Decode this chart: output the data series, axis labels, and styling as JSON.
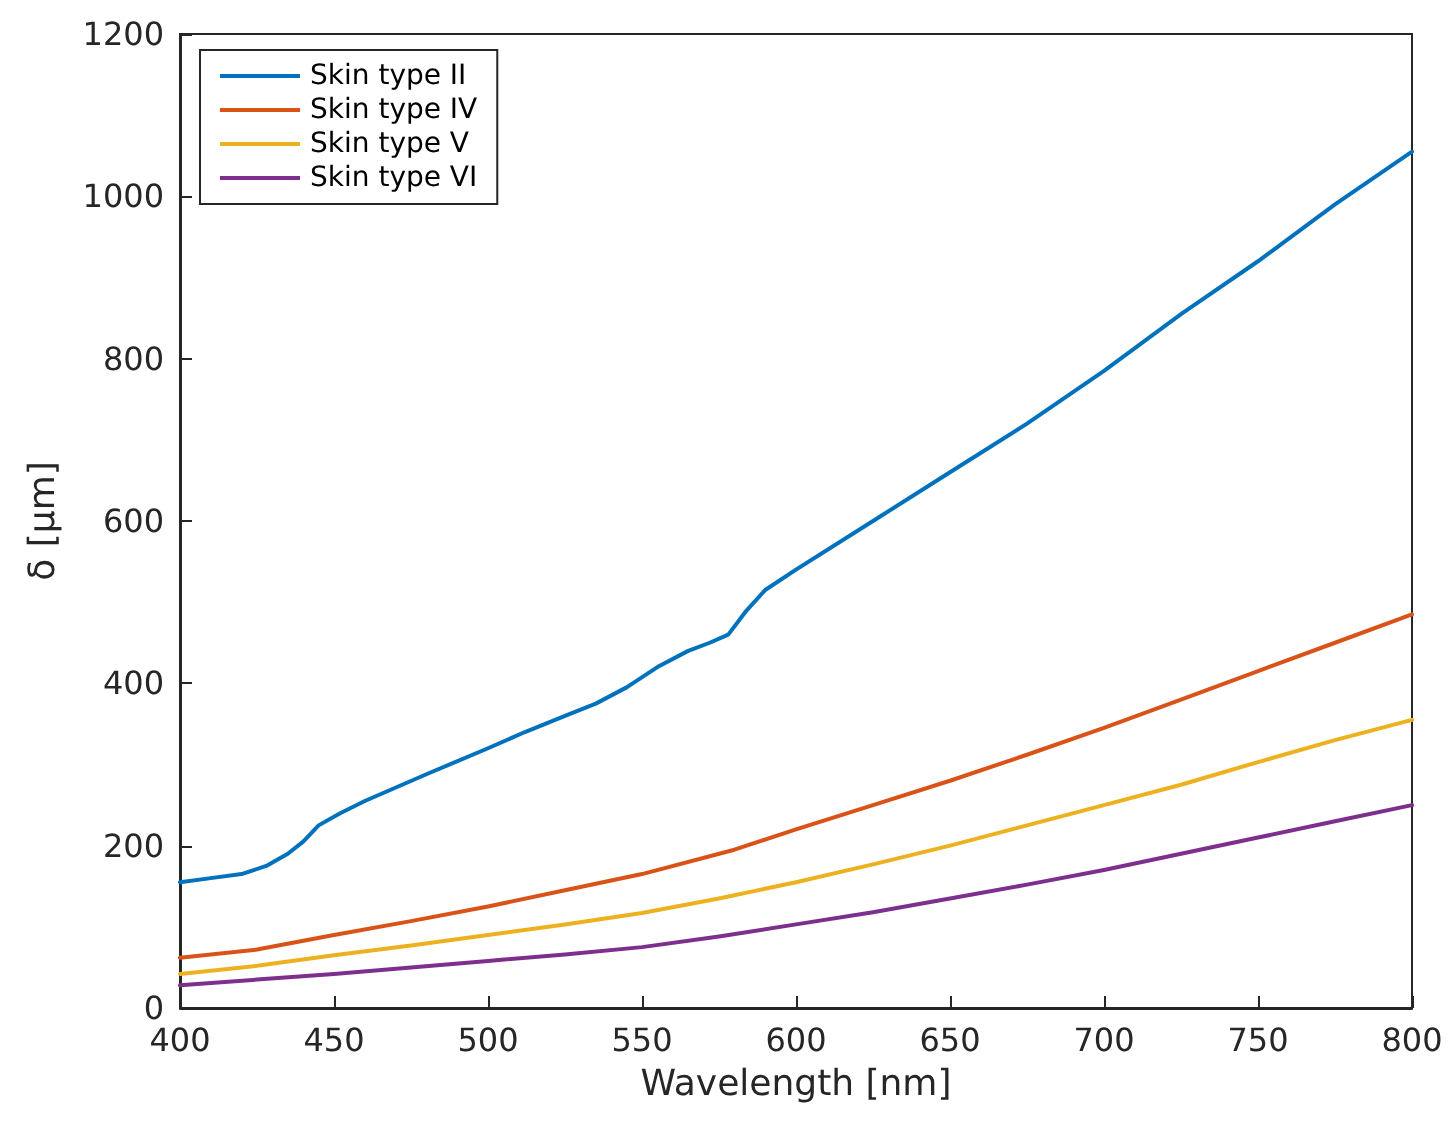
{
  "chart_data": {
    "type": "line",
    "xlabel": "Wavelength [nm]",
    "ylabel": "δ [μm]",
    "xlim": [
      400,
      800
    ],
    "xticks": [
      400,
      450,
      500,
      550,
      600,
      650,
      700,
      750,
      800
    ],
    "ylim": [
      0,
      1200
    ],
    "yticks": [
      0,
      200,
      400,
      600,
      800,
      1000,
      1200
    ],
    "grid": false,
    "legend": "top left",
    "marker": "none",
    "line_style": "solid",
    "series": [
      {
        "name": "Skin type II",
        "color": "#0072bd",
        "x": [
          400,
          410,
          420,
          428,
          435,
          440,
          445,
          452,
          460,
          480,
          500,
          512,
          525,
          535,
          545,
          555,
          565,
          572,
          578,
          584,
          590,
          600,
          625,
          650,
          675,
          700,
          725,
          750,
          775,
          800
        ],
        "values": [
          155,
          160,
          165,
          175,
          190,
          205,
          225,
          240,
          255,
          288,
          320,
          340,
          360,
          375,
          395,
          420,
          440,
          450,
          460,
          490,
          515,
          540,
          600,
          660,
          720,
          785,
          855,
          920,
          990,
          1055
        ]
      },
      {
        "name": "Skin type IV",
        "color": "#d95319",
        "x": [
          400,
          425,
          450,
          475,
          500,
          525,
          550,
          580,
          600,
          625,
          650,
          675,
          700,
          725,
          750,
          775,
          800
        ],
        "values": [
          62,
          72,
          90,
          107,
          125,
          145,
          165,
          195,
          220,
          250,
          280,
          312,
          345,
          380,
          415,
          450,
          485
        ]
      },
      {
        "name": "Skin type V",
        "color": "#edb120",
        "x": [
          400,
          425,
          450,
          475,
          500,
          525,
          550,
          575,
          600,
          625,
          650,
          675,
          700,
          725,
          750,
          775,
          800
        ],
        "values": [
          42,
          52,
          65,
          77,
          90,
          103,
          117,
          135,
          155,
          177,
          200,
          225,
          250,
          275,
          303,
          330,
          355
        ]
      },
      {
        "name": "Skin type VI",
        "color": "#7e2f8e",
        "x": [
          400,
          425,
          450,
          475,
          500,
          525,
          550,
          575,
          600,
          625,
          650,
          675,
          700,
          725,
          750,
          775,
          800
        ],
        "values": [
          28,
          35,
          42,
          50,
          58,
          66,
          75,
          88,
          103,
          118,
          135,
          152,
          170,
          190,
          210,
          230,
          250
        ]
      }
    ]
  }
}
